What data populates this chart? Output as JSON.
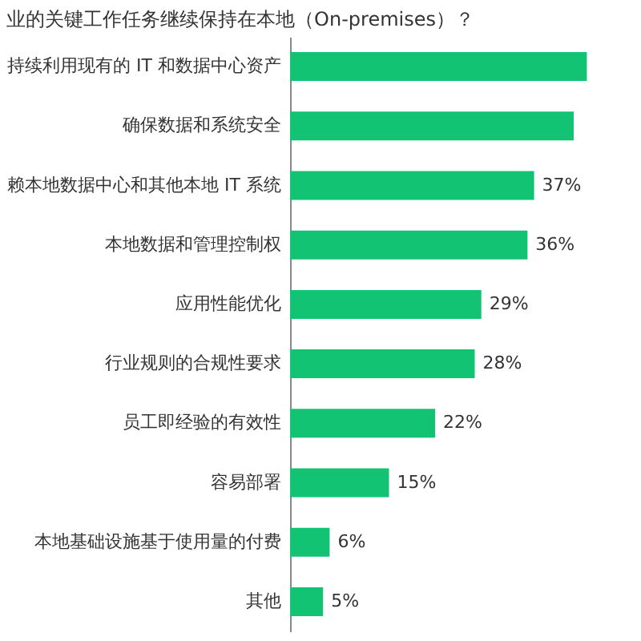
{
  "chart_data": {
    "type": "bar",
    "orientation": "horizontal",
    "title": "业的关键工作任务继续保持在本地（On-premises）？",
    "categories": [
      "持续利用现有的 IT 和数据中心资产",
      "确保数据和系统安全",
      "赖本地数据中心和其他本地 IT 系统",
      "本地数据和管理控制权",
      "应用性能优化",
      "行业规则的合规性要求",
      "员工即经验的有效性",
      "容易部署",
      "本地基础设施基于使用量的付费",
      "其他"
    ],
    "values": [
      45,
      43,
      37,
      36,
      29,
      28,
      22,
      15,
      6,
      5
    ],
    "value_labels": [
      null,
      null,
      "37%",
      "36%",
      "29%",
      "28%",
      "22%",
      "15%",
      "6%",
      "5%"
    ],
    "color": "#12c373",
    "grid": false
  }
}
